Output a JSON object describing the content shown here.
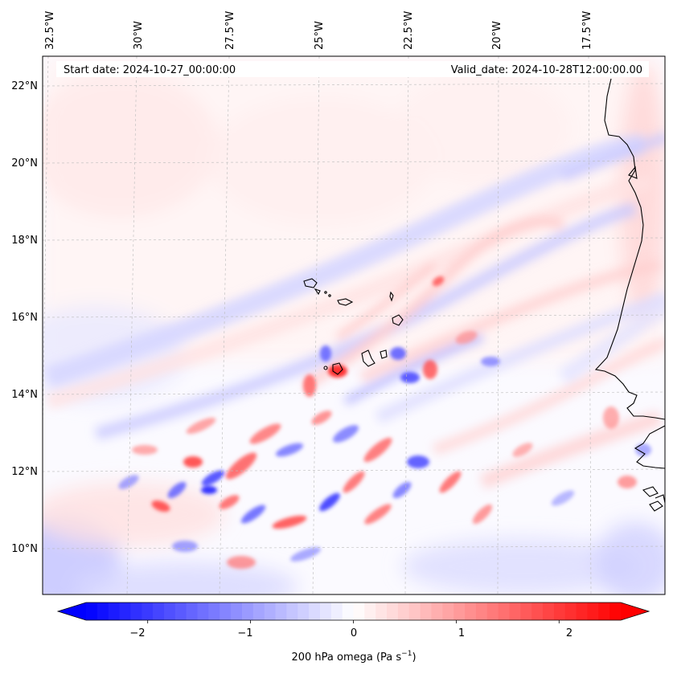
{
  "header": {
    "start_label": "Start date: 2024-10-27_00:00:00",
    "valid_label": "Valid_date: 2024-10-28T12:00:00.00"
  },
  "axes": {
    "lon_ticks": [
      "32.5°W",
      "30°W",
      "27.5°W",
      "25°W",
      "22.5°W",
      "20°W",
      "17.5°W"
    ],
    "lat_ticks": [
      "22°N",
      "20°N",
      "18°N",
      "16°N",
      "14°N",
      "12°N",
      "10°N"
    ]
  },
  "colorbar": {
    "tick_labels": [
      "−2",
      "−1",
      "0",
      "1",
      "2"
    ],
    "label_main": "200 hPa omega (Pa s",
    "label_exp": "−1",
    "label_close": ")",
    "vmin": -2.6,
    "vmax": 2.6,
    "colors": {
      "low": "#0000ff",
      "mid": "#ffffff",
      "high": "#ff0000"
    }
  },
  "field": {
    "variable": "200 hPa omega",
    "units": "Pa s-1"
  }
}
